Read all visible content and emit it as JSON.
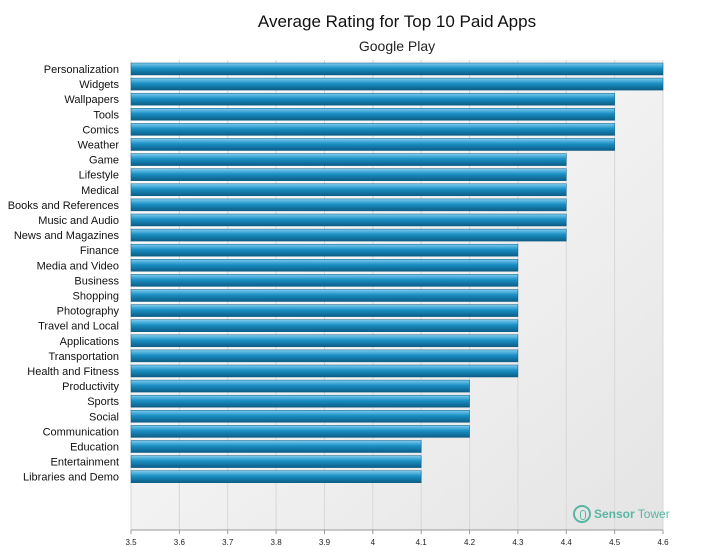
{
  "chart_data": {
    "type": "bar",
    "orientation": "horizontal",
    "title": "Average Rating for Top 10 Paid Apps",
    "subtitle": "Google Play",
    "xlabel": "",
    "ylabel": "",
    "xlim": [
      3.5,
      4.6
    ],
    "ticks": [
      "3.5",
      "3.6",
      "3.7",
      "3.8",
      "3.9",
      "4",
      "4.1",
      "4.2",
      "4.3",
      "4.4",
      "4.5",
      "4.6"
    ],
    "categories": [
      "Personalization",
      "Widgets",
      "Wallpapers",
      "Tools",
      "Comics",
      "Weather",
      "Game",
      "Lifestyle",
      "Medical",
      "Books and References",
      "Music and Audio",
      "News and Magazines",
      "Finance",
      "Media and Video",
      "Business",
      "Shopping",
      "Photography",
      "Travel and Local",
      "Applications",
      "Transportation",
      "Health and Fitness",
      "Productivity",
      "Sports",
      "Social",
      "Communication",
      "Education",
      "Entertainment",
      "Libraries and Demo"
    ],
    "values": [
      4.6,
      4.6,
      4.5,
      4.5,
      4.5,
      4.5,
      4.4,
      4.4,
      4.4,
      4.4,
      4.4,
      4.4,
      4.3,
      4.3,
      4.3,
      4.3,
      4.3,
      4.3,
      4.3,
      4.3,
      4.3,
      4.2,
      4.2,
      4.2,
      4.2,
      4.1,
      4.1,
      4.1
    ],
    "grid": true,
    "bar_color": "#1a8fc4"
  },
  "watermark": {
    "brand_part1": "Sensor",
    "brand_part2": "Tower",
    "color": "#2aa68e"
  }
}
